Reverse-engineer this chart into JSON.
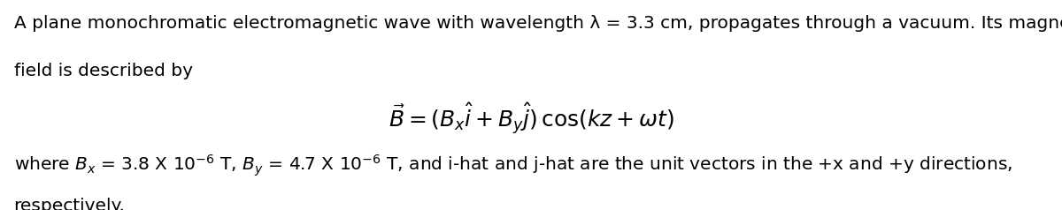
{
  "background_color": "#ffffff",
  "figsize": [
    12.0,
    2.38
  ],
  "dpi": 100,
  "line1": "A plane monochromatic electromagnetic wave with wavelength λ = 3.3 cm, propagates through a vacuum. Its magnetic",
  "line2": "field is described by",
  "formula": "$\\vec{B} = (B_x\\hat{i} + B_y\\hat{j})\\,\\cos(kz + \\omega t)$",
  "line3": "where $B_x$ = 3.8 X 10$^{-6}$ T, $B_y$ = 4.7 X 10$^{-6}$ T, and i-hat and j-hat are the unit vectors in the +x and +y directions,",
  "line4": "respectively.",
  "text_color": "#000000",
  "font_size_body": 14.5,
  "font_size_formula": 18
}
